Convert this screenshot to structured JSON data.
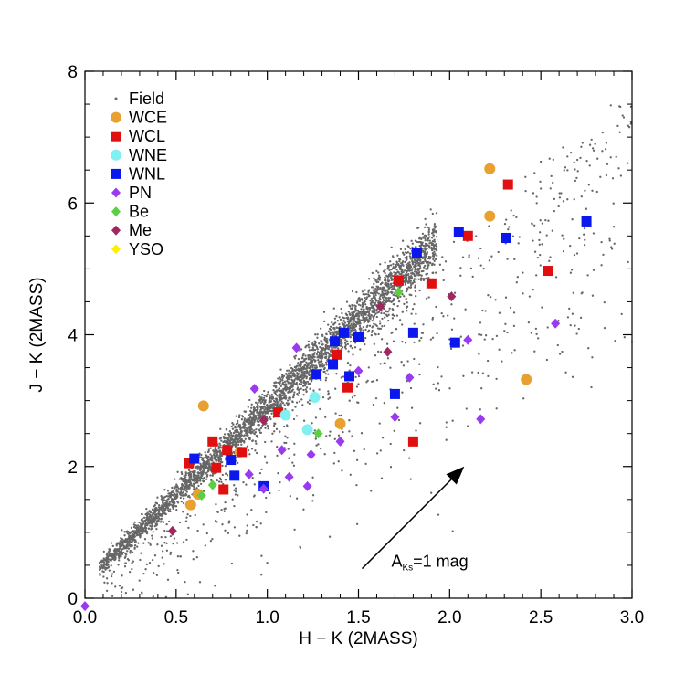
{
  "chart_data": {
    "type": "scatter",
    "xlabel": "H − K (2MASS)",
    "ylabel": "J − K (2MASS)",
    "xlim": [
      0,
      3.0
    ],
    "ylim": [
      0,
      8
    ],
    "xticks": [
      "0.0",
      "0.5",
      "1.0",
      "1.5",
      "2.0",
      "2.5",
      "3.0"
    ],
    "yticks": [
      "0",
      "2",
      "4",
      "6",
      "8"
    ],
    "annotation": {
      "main": "A",
      "sub": "Ks",
      "rest": "=1 mag",
      "arrow_from": [
        1.52,
        0.45
      ],
      "arrow_to": [
        2.08,
        2.0
      ]
    },
    "legend_position": "top-left",
    "series": [
      {
        "name": "Field",
        "marker": "dot",
        "color": "#666666",
        "points": []
      },
      {
        "name": "WCE",
        "marker": "circle",
        "color": "#e8a030",
        "points": [
          [
            0.65,
            2.92
          ],
          [
            2.22,
            6.52
          ],
          [
            2.22,
            5.8
          ],
          [
            1.4,
            2.65
          ],
          [
            2.42,
            3.32
          ],
          [
            0.58,
            1.42
          ],
          [
            0.62,
            1.58
          ],
          [
            0.85,
            2.22
          ]
        ]
      },
      {
        "name": "WCL",
        "marker": "square",
        "color": "#e01010",
        "points": [
          [
            2.32,
            6.28
          ],
          [
            2.1,
            5.5
          ],
          [
            2.54,
            4.97
          ],
          [
            1.72,
            4.82
          ],
          [
            1.9,
            4.78
          ],
          [
            1.38,
            3.7
          ],
          [
            1.44,
            3.2
          ],
          [
            1.8,
            2.38
          ],
          [
            1.06,
            2.82
          ],
          [
            0.57,
            2.05
          ],
          [
            0.7,
            2.38
          ],
          [
            0.78,
            2.25
          ],
          [
            0.86,
            2.22
          ],
          [
            0.72,
            1.98
          ],
          [
            0.76,
            1.65
          ]
        ]
      },
      {
        "name": "WNE",
        "marker": "circle",
        "color": "#80f0f0",
        "points": [
          [
            1.26,
            3.05
          ],
          [
            1.1,
            2.78
          ],
          [
            1.22,
            2.56
          ]
        ]
      },
      {
        "name": "WNL",
        "marker": "square",
        "color": "#0a18ee",
        "points": [
          [
            2.75,
            5.72
          ],
          [
            2.05,
            5.56
          ],
          [
            2.31,
            5.47
          ],
          [
            1.82,
            5.24
          ],
          [
            1.42,
            4.03
          ],
          [
            1.37,
            3.9
          ],
          [
            1.5,
            3.97
          ],
          [
            1.36,
            3.55
          ],
          [
            1.27,
            3.4
          ],
          [
            1.45,
            3.37
          ],
          [
            1.8,
            4.03
          ],
          [
            2.03,
            3.88
          ],
          [
            1.7,
            3.1
          ],
          [
            0.6,
            2.12
          ],
          [
            0.8,
            2.1
          ],
          [
            0.82,
            1.86
          ],
          [
            0.98,
            1.7
          ]
        ]
      },
      {
        "name": "PN",
        "marker": "diamond",
        "color": "#9a3af0",
        "points": [
          [
            0.0,
            -0.12
          ],
          [
            2.58,
            4.17
          ],
          [
            2.1,
            3.92
          ],
          [
            1.78,
            3.35
          ],
          [
            1.5,
            3.45
          ],
          [
            1.16,
            3.8
          ],
          [
            1.7,
            2.75
          ],
          [
            2.17,
            2.72
          ],
          [
            1.4,
            2.38
          ],
          [
            1.08,
            2.25
          ],
          [
            1.24,
            2.18
          ],
          [
            1.12,
            1.84
          ],
          [
            1.22,
            1.7
          ],
          [
            0.98,
            1.66
          ],
          [
            0.9,
            1.88
          ],
          [
            0.93,
            3.18
          ]
        ]
      },
      {
        "name": "Be",
        "marker": "diamond",
        "color": "#5ad040",
        "points": [
          [
            1.72,
            4.65
          ],
          [
            1.28,
            2.5
          ],
          [
            0.7,
            1.72
          ],
          [
            0.64,
            1.56
          ]
        ]
      },
      {
        "name": "Me",
        "marker": "diamond",
        "color": "#a02860",
        "points": [
          [
            1.62,
            4.43
          ],
          [
            2.01,
            4.58
          ],
          [
            1.66,
            3.74
          ],
          [
            0.98,
            2.7
          ],
          [
            0.48,
            1.02
          ]
        ]
      },
      {
        "name": "YSO",
        "marker": "diamond",
        "color": "#ffee00",
        "points": []
      }
    ]
  }
}
